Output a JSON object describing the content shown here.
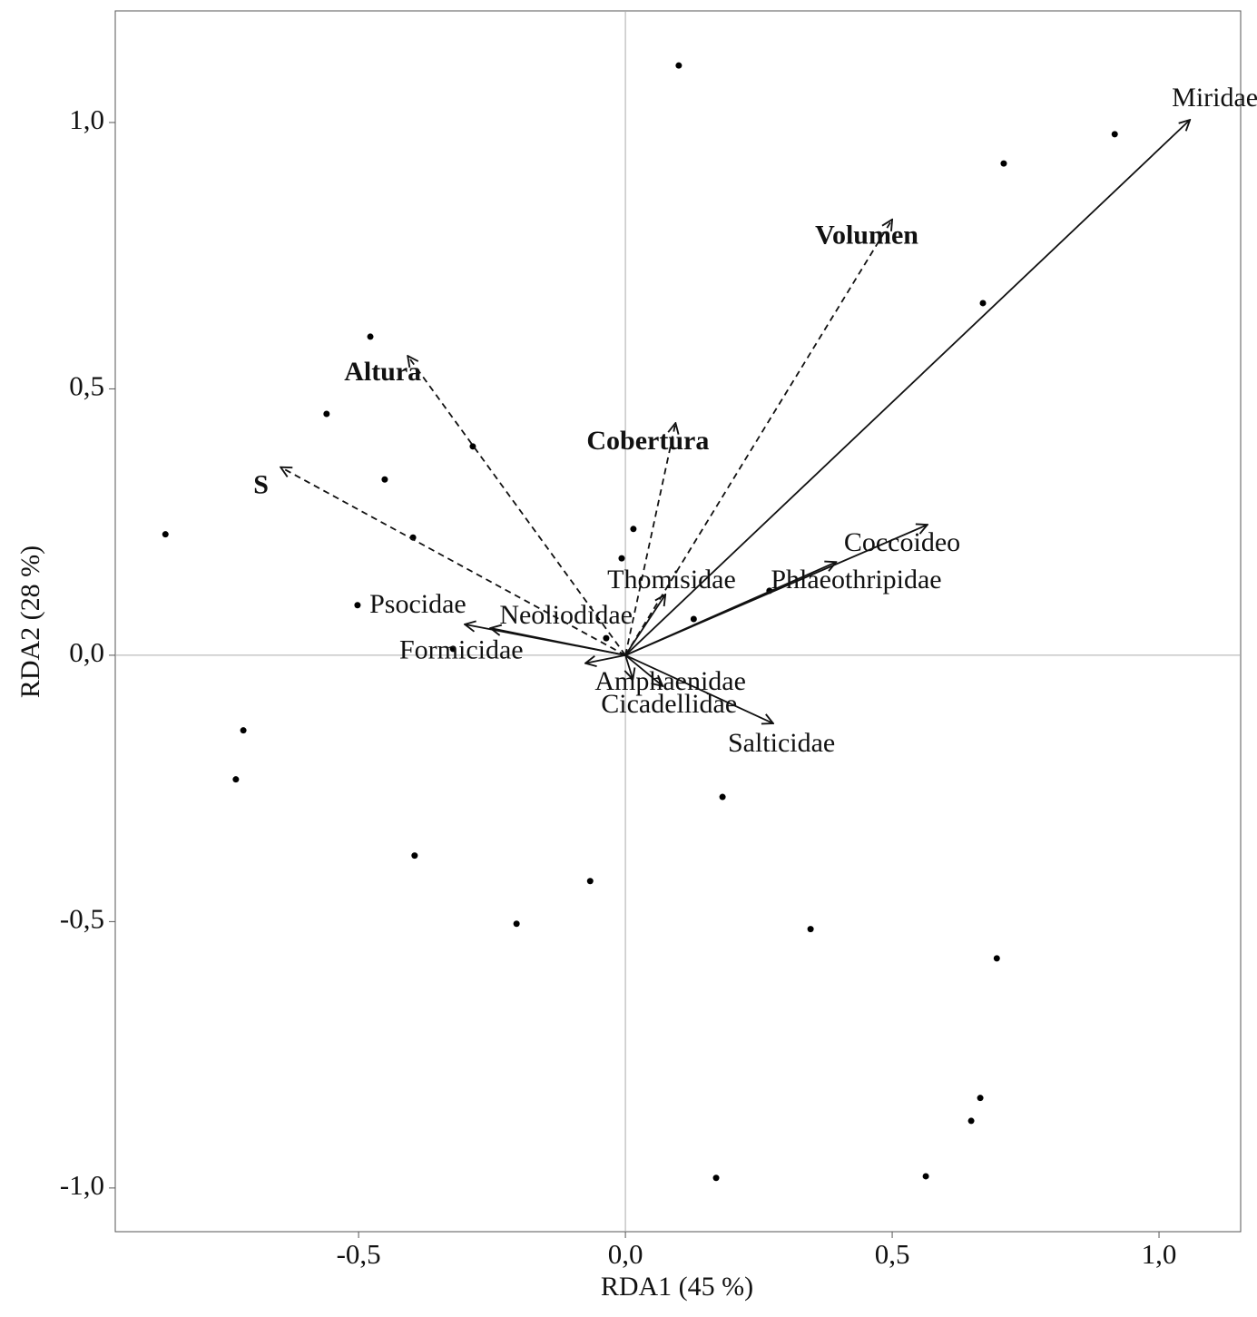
{
  "chart_data": {
    "type": "biplot",
    "x_label": "RDA1 (45 %)",
    "y_label": "RDA2 (28 %)",
    "xlim": [
      -0.956,
      1.153
    ],
    "ylim": [
      -1.082,
      1.2095
    ],
    "xticks": [
      {
        "value": -0.5,
        "label": "-0,5"
      },
      {
        "value": 0,
        "label": "0,0"
      },
      {
        "value": 0.5,
        "label": "0,5"
      },
      {
        "value": 1,
        "label": "1,0"
      }
    ],
    "yticks": [
      {
        "value": -1,
        "label": "-1,0"
      },
      {
        "value": -0.5,
        "label": "-0,5"
      },
      {
        "value": 0,
        "label": "0,0"
      },
      {
        "value": 0.5,
        "label": "0,5"
      },
      {
        "value": 1,
        "label": "1,0"
      }
    ],
    "sites": {
      "x": [
        0.1,
        0.917,
        0.709,
        0.67,
        -0.478,
        -0.56,
        -0.451,
        -0.286,
        -0.398,
        -0.862,
        0.015,
        -0.007,
        -0.502,
        -0.036,
        0.128,
        -0.716,
        -0.73,
        -0.395,
        -0.066,
        -0.204,
        0.182,
        0.347,
        0.696,
        0.665,
        0.648,
        0.563,
        0.17,
        0.27,
        -0.323
      ],
      "y": [
        1.107,
        0.978,
        0.923,
        0.661,
        0.598,
        0.453,
        0.33,
        0.392,
        0.221,
        0.227,
        0.237,
        0.182,
        0.094,
        0.032,
        0.068,
        -0.141,
        -0.233,
        -0.376,
        -0.424,
        -0.504,
        -0.266,
        -0.514,
        -0.569,
        -0.831,
        -0.874,
        -0.978,
        -0.981,
        0.121,
        0.012
      ]
    },
    "species": [
      {
        "name": "Miridae",
        "x": 1.058,
        "y": 1.005
      },
      {
        "name": "Coccoideo",
        "x": 0.566,
        "y": 0.245
      },
      {
        "name": "Phlaeothripidae",
        "x": 0.395,
        "y": 0.175
      },
      {
        "name": "Thomisidae",
        "x": 0.075,
        "y": 0.114
      },
      {
        "name": "Psocidae",
        "x": -0.301,
        "y": 0.058
      },
      {
        "name": "Neoliodidae",
        "x": -0.253,
        "y": 0.051
      },
      {
        "name": "Formicidae",
        "x": -0.075,
        "y": -0.015
      },
      {
        "name": "Amphaenidae",
        "x": 0.014,
        "y": -0.045
      },
      {
        "name": "Cicadellidae",
        "x": 0.07,
        "y": -0.058
      },
      {
        "name": "Salticidae",
        "x": 0.277,
        "y": -0.128
      }
    ],
    "variables": [
      {
        "name": "Volumen",
        "x": 0.5,
        "y": 0.818
      },
      {
        "name": "Altura",
        "x": -0.408,
        "y": 0.562
      },
      {
        "name": "Cobertura",
        "x": 0.094,
        "y": 0.436
      },
      {
        "name": "S",
        "x": -0.646,
        "y": 0.353
      }
    ]
  }
}
